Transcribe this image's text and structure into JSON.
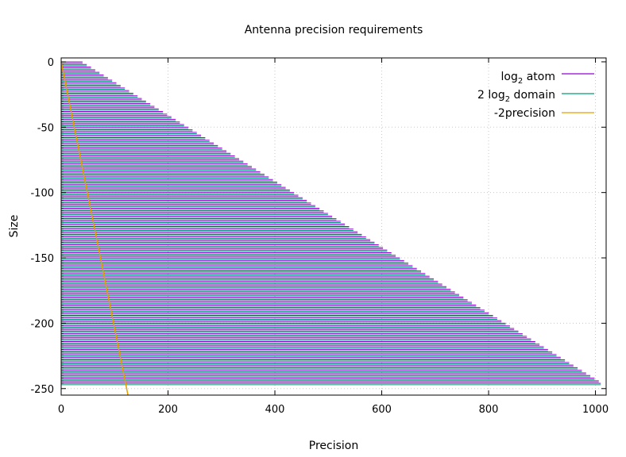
{
  "chart_data": {
    "type": "line",
    "title": "Antenna precision requirements",
    "xlabel": "Precision",
    "ylabel": "Size",
    "xlim": [
      0,
      1020
    ],
    "ylim": [
      -255,
      3
    ],
    "x_ticks": [
      0,
      200,
      400,
      600,
      800,
      1000
    ],
    "y_ticks": [
      0,
      -50,
      -100,
      -150,
      -200,
      -250
    ],
    "grid": true,
    "legend_position": "top-right",
    "legend": [
      {
        "label_main": "log",
        "label_sub": "2",
        "label_rest": " atom",
        "color": "#9400d3"
      },
      {
        "label_pre": "2 log",
        "label_sub": "2",
        "label_rest": " domain",
        "color": "#009e73"
      },
      {
        "label_full": "-2precision",
        "color": "#e69f00"
      }
    ],
    "series": [
      {
        "name": "log2 atom",
        "color": "#9400d3",
        "style": "horizontal segments",
        "note_values": "segments at each size s from x = 0 to x ≈ 4·|s|",
        "size_range": [
          0,
          -247
        ],
        "size_step": -1,
        "max_x": 1010
      },
      {
        "name": "2 log2 domain",
        "color": "#009e73",
        "style": "horizontal segments",
        "size_range": [
          0,
          -247
        ],
        "size_step": -1,
        "max_x": 1010
      },
      {
        "name": "-2precision",
        "color": "#e69f00",
        "style": "line",
        "x": [
          0,
          125
        ],
        "y": [
          0,
          -255
        ]
      }
    ]
  }
}
